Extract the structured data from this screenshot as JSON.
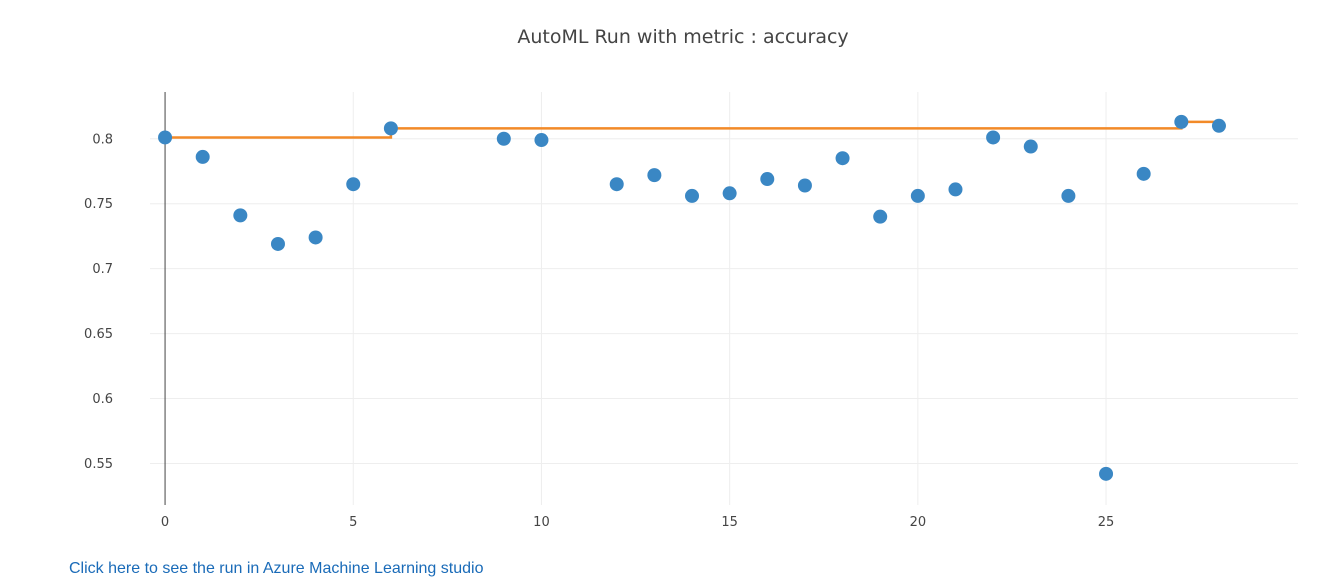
{
  "chart_data": {
    "type": "scatter",
    "title": "AutoML Run with metric : accuracy",
    "xlabel": "",
    "ylabel": "",
    "xlim": [
      -0.4,
      30.1
    ],
    "ylim": [
      0.518,
      0.836
    ],
    "x_ticks": [
      0,
      5,
      10,
      15,
      20,
      25
    ],
    "y_ticks": [
      0.55,
      0.6,
      0.65,
      0.7,
      0.75,
      0.8
    ],
    "x_tick_labels": [
      "0",
      "5",
      "10",
      "15",
      "20",
      "25"
    ],
    "y_tick_labels": [
      "0.55",
      "0.6",
      "0.65",
      "0.7",
      "0.75",
      "0.8"
    ],
    "grid": true,
    "legend": false,
    "series": [
      {
        "type": "scatter",
        "color": "#3a87c4",
        "x": [
          0,
          1,
          2,
          3,
          4,
          5,
          6,
          9,
          10,
          12,
          13,
          14,
          15,
          16,
          17,
          18,
          19,
          20,
          21,
          22,
          23,
          24,
          25,
          26,
          27,
          28
        ],
        "y": [
          0.801,
          0.786,
          0.741,
          0.719,
          0.724,
          0.765,
          0.808,
          0.8,
          0.799,
          0.765,
          0.772,
          0.756,
          0.758,
          0.769,
          0.764,
          0.785,
          0.74,
          0.756,
          0.761,
          0.801,
          0.794,
          0.756,
          0.542,
          0.773,
          0.813,
          0.81
        ]
      },
      {
        "type": "line",
        "color": "#f28a28",
        "x": [
          0,
          6,
          6,
          27,
          27,
          28
        ],
        "y": [
          0.801,
          0.801,
          0.808,
          0.808,
          0.813,
          0.813
        ]
      }
    ]
  },
  "link": {
    "text": "Click here to see the run in Azure Machine Learning studio"
  }
}
